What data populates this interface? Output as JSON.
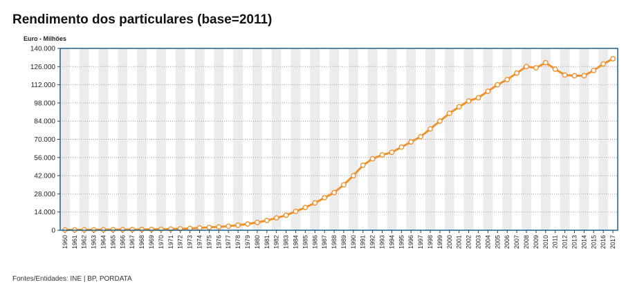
{
  "header": {
    "title": "Rendimento dos particulares (base=2011)",
    "unit": "Euro - Milhões"
  },
  "footer": {
    "source": "Fontes/Entidades: INE | BP, PORDATA"
  },
  "colors": {
    "line": "#f0922c",
    "frame": "#1f5f8b",
    "band": "#ececec",
    "grid": "#999999"
  },
  "chart_data": {
    "type": "line",
    "title": "Rendimento dos particulares (base=2011)",
    "ylabel": "Euro - Milhões",
    "xlabel": "",
    "ylim": [
      0,
      140000
    ],
    "yticks": [
      0,
      14000,
      28000,
      42000,
      56000,
      70000,
      84000,
      98000,
      112000,
      126000,
      140000
    ],
    "ytick_labels": [
      "0",
      "14.000",
      "28.000",
      "42.000",
      "56.000",
      "70.000",
      "84.000",
      "98.000",
      "112.000",
      "126.000",
      "140.000"
    ],
    "grid": true,
    "categories": [
      "1960",
      "1961",
      "1962",
      "1963",
      "1964",
      "1965",
      "1966",
      "1967",
      "1968",
      "1969",
      "1970",
      "1971",
      "1972",
      "1973",
      "1974",
      "1975",
      "1976",
      "1977",
      "1978",
      "1979",
      "1980",
      "1981",
      "1982",
      "1983",
      "1984",
      "1985",
      "1986",
      "1987",
      "1988",
      "1989",
      "1990",
      "1991",
      "1992",
      "1993",
      "1994",
      "1995",
      "1996",
      "1997",
      "1998",
      "1999",
      "2000",
      "2001",
      "2002",
      "2003",
      "2004",
      "2005",
      "2006",
      "2007",
      "2008",
      "2009",
      "2010",
      "2011",
      "2012",
      "2013",
      "2014",
      "2015",
      "2016",
      "2017"
    ],
    "series": [
      {
        "values": [
          250,
          280,
          310,
          350,
          400,
          450,
          500,
          560,
          620,
          700,
          800,
          950,
          1150,
          1400,
          1800,
          2200,
          2600,
          3100,
          3900,
          4800,
          6000,
          7500,
          9500,
          11500,
          14500,
          17500,
          21000,
          25000,
          29000,
          35000,
          42000,
          50000,
          55000,
          58000,
          60000,
          64000,
          68000,
          72000,
          78000,
          84000,
          90000,
          95000,
          99500,
          102000,
          107000,
          112000,
          116000,
          121000,
          126000,
          125000,
          129000,
          124000,
          119500,
          119000,
          119000,
          123000,
          128000,
          132000
        ]
      }
    ]
  }
}
